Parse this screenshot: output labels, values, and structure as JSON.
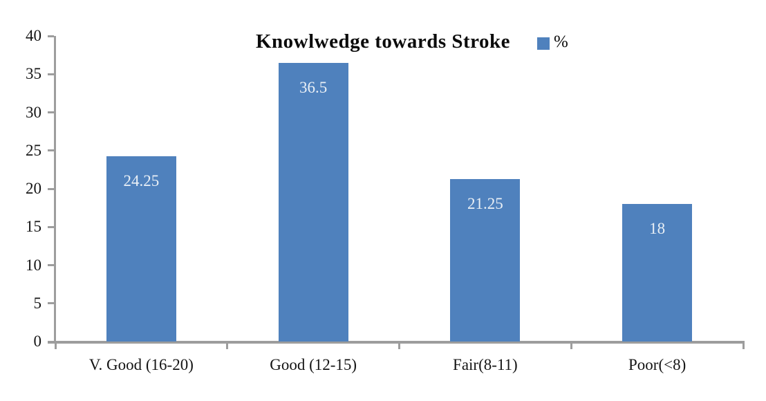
{
  "title": "Knowlwedge towards Stroke",
  "legend": {
    "label": "%",
    "swatch_color": "#4F81BD"
  },
  "colors": {
    "bar": "#4F81BD",
    "axis": "#9D9D9D",
    "bar_label_text": "#EAF0F6",
    "axis_text": "#141414",
    "title_text": "#0C0C0C",
    "background": "#FFFFFF"
  },
  "chart_data": {
    "type": "bar",
    "title": "Knowlwedge towards Stroke",
    "categories": [
      "V. Good (16-20)",
      "Good (12-15)",
      "Fair(8-11)",
      "Poor(<8)"
    ],
    "series": [
      {
        "name": "%",
        "values": [
          24.25,
          36.5,
          21.25,
          18
        ]
      }
    ],
    "data_labels": [
      "24.25",
      "36.5",
      "21.25",
      "18"
    ],
    "xlabel": "",
    "ylabel": "",
    "ylim": [
      0,
      40
    ],
    "yticks": [
      0,
      5,
      10,
      15,
      20,
      25,
      30,
      35,
      40
    ],
    "ytick_interval": 5,
    "grid": false,
    "legend_position": "top-right",
    "data_label_position": "inside-end"
  }
}
